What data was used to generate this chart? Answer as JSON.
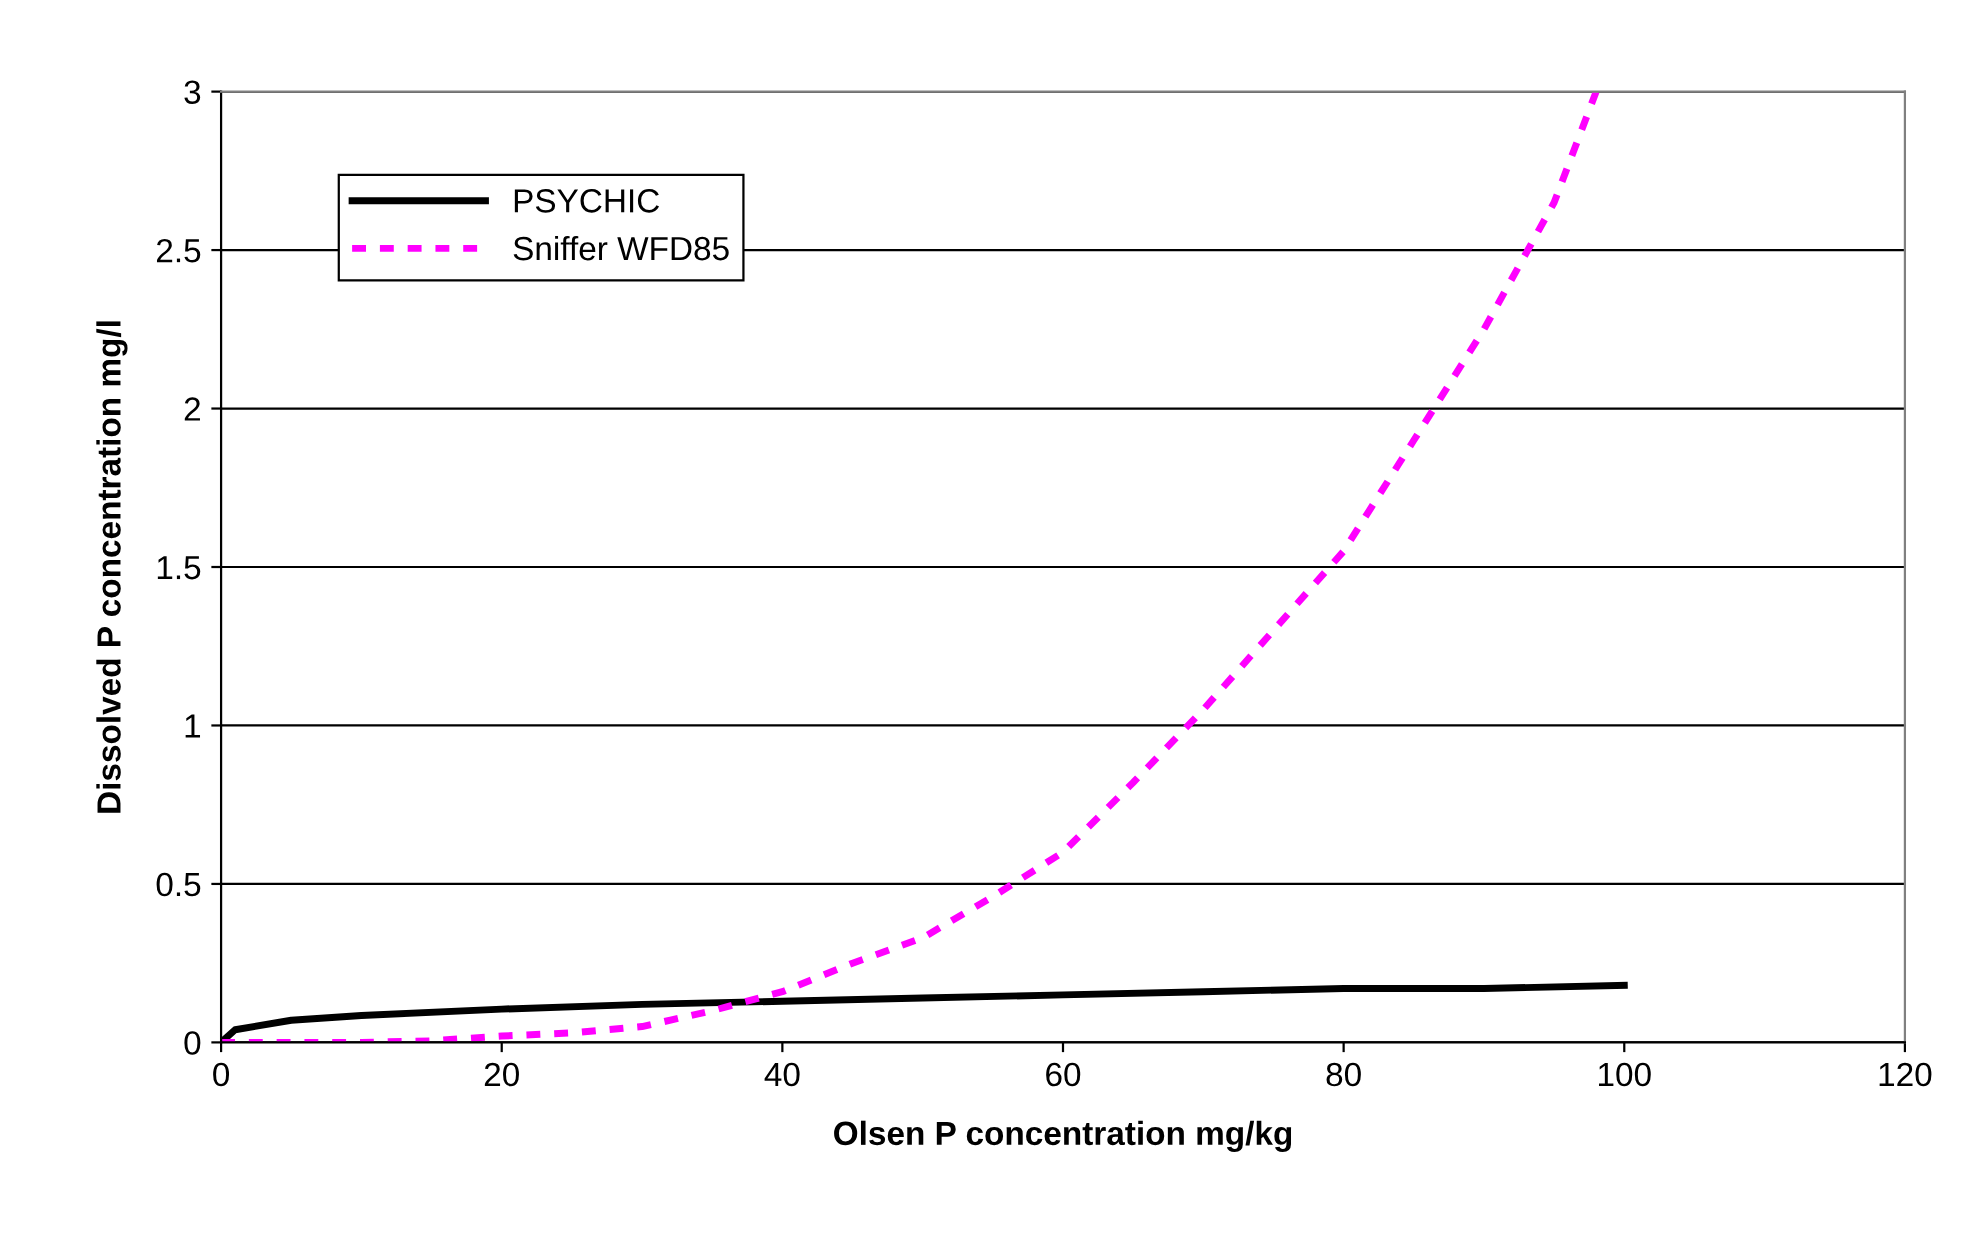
{
  "chart_data": {
    "type": "line",
    "xlabel": "Olsen P concentration mg/kg",
    "ylabel": "Dissolved P concentration mg/l",
    "xlim": [
      0,
      120
    ],
    "xticks": [
      0,
      20,
      40,
      60,
      80,
      100,
      120
    ],
    "ylim": [
      0,
      3
    ],
    "yticks": [
      0,
      0.5,
      1,
      1.5,
      2,
      2.5,
      3
    ],
    "grid": "y",
    "legend": "top left",
    "series": [
      {
        "name": "PSYCHIC",
        "color": "#000000",
        "line_style": "solid",
        "x": [
          0,
          1,
          5,
          10,
          20,
          30,
          40,
          50,
          60,
          70,
          80,
          90,
          100
        ],
        "values": [
          0,
          0.04,
          0.07,
          0.085,
          0.105,
          0.12,
          0.13,
          0.14,
          0.15,
          0.16,
          0.17,
          0.17,
          0.18
        ]
      },
      {
        "name": "Sniffer WFD85",
        "color": "#ff00ff",
        "line_style": "dashed",
        "x": [
          0,
          10,
          15,
          20,
          25,
          30,
          35,
          40,
          45,
          50,
          55,
          60,
          65,
          70,
          75,
          80,
          85,
          90,
          95,
          98
        ],
        "values": [
          0,
          0,
          0.005,
          0.02,
          0.03,
          0.05,
          0.1,
          0.16,
          0.25,
          0.33,
          0.46,
          0.6,
          0.82,
          1.05,
          1.3,
          1.55,
          1.9,
          2.25,
          2.65,
          3.0
        ]
      }
    ]
  }
}
